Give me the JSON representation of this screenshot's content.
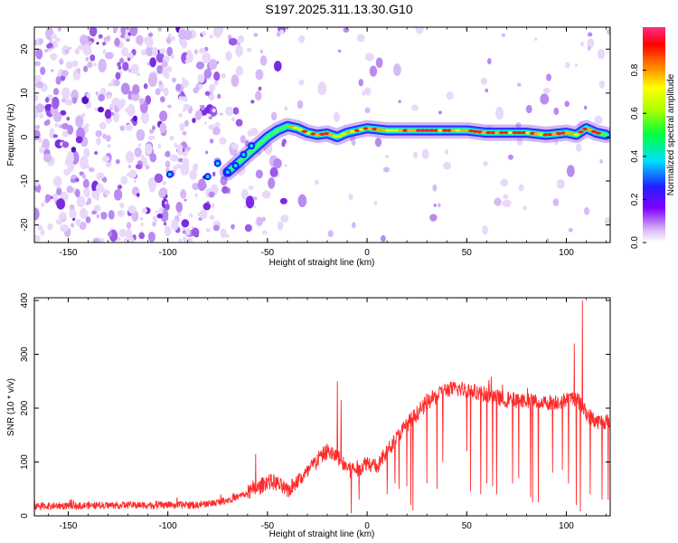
{
  "title": "S197.2025.311.13.30.G10",
  "chart_data": [
    {
      "type": "heatmap",
      "id": "spectrogram",
      "xlabel": "Height of straight line (km)",
      "ylabel": "Frequency (Hz)",
      "xlim": [
        -167,
        122
      ],
      "ylim": [
        -24,
        25
      ],
      "xticks": [
        -150,
        -100,
        -50,
        0,
        50,
        100
      ],
      "xtick_labels": [
        "-150",
        "-100",
        "-50",
        "0",
        "50",
        "100"
      ],
      "yticks": [
        20,
        10,
        0,
        -10,
        -20
      ],
      "ytick_labels": [
        "20",
        "10",
        "0",
        "-10",
        "-20"
      ],
      "ridge": {
        "x": [
          -70,
          -65,
          -60,
          -55,
          -50,
          -45,
          -40,
          -35,
          -30,
          -25,
          -20,
          -15,
          -10,
          -5,
          0,
          10,
          20,
          30,
          40,
          50,
          60,
          70,
          80,
          90,
          100,
          105,
          110,
          115,
          120
        ],
        "y": [
          -8,
          -6,
          -4,
          -2,
          0,
          1.5,
          2.5,
          2,
          1,
          0.5,
          0.8,
          0,
          1,
          1.5,
          2,
          1.5,
          1.5,
          1.5,
          1.5,
          1.5,
          1,
          1,
          1,
          0.5,
          1,
          0.5,
          2,
          1,
          0.5
        ]
      },
      "colorbar": {
        "label": "Normalized spectral amplitude",
        "range": [
          0,
          1
        ],
        "ticks": [
          0.0,
          0.2,
          0.4,
          0.6,
          0.8
        ],
        "tick_labels": [
          "0.0",
          "0.2",
          "0.4",
          "0.6",
          "0.8"
        ]
      }
    },
    {
      "type": "line",
      "id": "snr",
      "xlabel": "Height of straight line (km)",
      "ylabel": "SNR (10 * v/v)",
      "xlim": [
        -167,
        122
      ],
      "ylim": [
        0,
        405
      ],
      "xticks": [
        -150,
        -100,
        -50,
        0,
        50,
        100
      ],
      "xtick_labels": [
        "-150",
        "-100",
        "-50",
        "0",
        "50",
        "100"
      ],
      "yticks": [
        0,
        100,
        200,
        300,
        400
      ],
      "ytick_labels": [
        "0",
        "100",
        "200",
        "300",
        "400"
      ],
      "color": "#ff2a2a",
      "trend": {
        "x": [
          -167,
          -120,
          -85,
          -75,
          -65,
          -55,
          -50,
          -45,
          -40,
          -35,
          -30,
          -25,
          -20,
          -15,
          -10,
          -5,
          0,
          5,
          10,
          20,
          30,
          40,
          50,
          60,
          70,
          80,
          90,
          100,
          105,
          110,
          115,
          122
        ],
        "y": [
          18,
          20,
          20,
          25,
          35,
          50,
          65,
          60,
          45,
          65,
          80,
          105,
          120,
          110,
          90,
          85,
          100,
          90,
          120,
          170,
          210,
          235,
          235,
          225,
          215,
          215,
          210,
          215,
          220,
          190,
          175,
          175
        ]
      },
      "noise_amplitude": 15,
      "spikes": [
        {
          "x": 108,
          "y": 400
        },
        {
          "x": 104,
          "y": 320
        },
        {
          "x": -15,
          "y": 250
        },
        {
          "x": -13,
          "y": 215
        },
        {
          "x": -56,
          "y": 115
        }
      ],
      "dips": [
        {
          "x": -8,
          "y": 5
        },
        {
          "x": -4,
          "y": 30
        },
        {
          "x": 10,
          "y": 40
        },
        {
          "x": 14,
          "y": 60
        },
        {
          "x": 16,
          "y": 50
        },
        {
          "x": 20,
          "y": 55
        },
        {
          "x": 22,
          "y": 20
        },
        {
          "x": 23,
          "y": 10
        },
        {
          "x": 30,
          "y": 60
        },
        {
          "x": 35,
          "y": 50
        },
        {
          "x": 38,
          "y": 100
        },
        {
          "x": 50,
          "y": 120
        },
        {
          "x": 52,
          "y": 45
        },
        {
          "x": 57,
          "y": 40
        },
        {
          "x": 60,
          "y": 60
        },
        {
          "x": 63,
          "y": 55
        },
        {
          "x": 65,
          "y": 40
        },
        {
          "x": 73,
          "y": 60
        },
        {
          "x": 76,
          "y": 70
        },
        {
          "x": 82,
          "y": 35
        },
        {
          "x": 83,
          "y": 25
        },
        {
          "x": 86,
          "y": 25
        },
        {
          "x": 93,
          "y": 80
        },
        {
          "x": 98,
          "y": 85
        },
        {
          "x": 101,
          "y": 60
        },
        {
          "x": 105,
          "y": 20
        },
        {
          "x": 107,
          "y": 8
        },
        {
          "x": 112,
          "y": 40
        },
        {
          "x": 118,
          "y": 30
        },
        {
          "x": 121,
          "y": 30
        }
      ]
    }
  ]
}
